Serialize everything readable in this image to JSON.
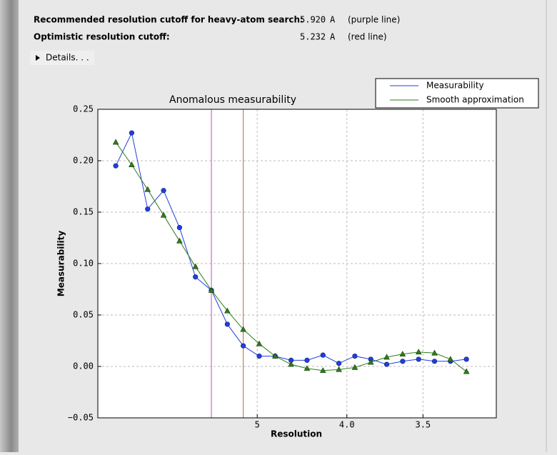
{
  "header": {
    "rows": [
      {
        "label": "Recommended resolution cutoff for heavy-atom search:",
        "value": "5.920",
        "unit": "A",
        "note": "(purple line)"
      },
      {
        "label": "Optimistic resolution cutoff:",
        "value": "5.232",
        "unit": "A",
        "note": "(red line)"
      }
    ],
    "details": "Details. . ."
  },
  "chart_data": {
    "type": "line",
    "title": "Anomalous measurability",
    "xlabel": "Resolution",
    "ylabel": "Measurability",
    "x": [
      0.0045,
      0.0085,
      0.0125,
      0.0165,
      0.0205,
      0.0245,
      0.0285,
      0.0325,
      0.0365,
      0.0405,
      0.0445,
      0.0485,
      0.0525,
      0.0565,
      0.0605,
      0.0645,
      0.0685,
      0.0725,
      0.0765,
      0.0805,
      0.0845,
      0.0885,
      0.0925
    ],
    "series": [
      {
        "name": "Measurability",
        "color": "#1f3fe0",
        "marker": "circle",
        "values": [
          0.195,
          0.227,
          0.153,
          0.171,
          0.135,
          0.087,
          0.074,
          0.041,
          0.02,
          0.01,
          0.01,
          0.006,
          0.006,
          0.011,
          0.003,
          0.01,
          0.007,
          0.002,
          0.005,
          0.007,
          0.005,
          0.005,
          0.007
        ]
      },
      {
        "name": "Smooth approximation",
        "color": "#2e7d1a",
        "marker": "triangle",
        "values": [
          0.218,
          0.196,
          0.172,
          0.147,
          0.122,
          0.097,
          0.074,
          0.054,
          0.036,
          0.022,
          0.01,
          0.002,
          -0.002,
          -0.004,
          -0.003,
          -0.001,
          0.004,
          0.009,
          0.012,
          0.014,
          0.013,
          0.007,
          -0.005
        ]
      }
    ],
    "vlines": [
      {
        "x": 0.0285,
        "color": "#cc44cc"
      },
      {
        "x": 0.0365,
        "color": "#c0662a"
      }
    ],
    "xlim": [
      0,
      0.1
    ],
    "ylim": [
      -0.05,
      0.25
    ],
    "xticks": [
      {
        "value": 0.04,
        "label": "5"
      },
      {
        "value": 0.0625,
        "label": "4.0"
      },
      {
        "value": 0.0816,
        "label": "3.5"
      }
    ],
    "yticks": [
      {
        "value": -0.05,
        "label": "−0.05"
      },
      {
        "value": 0,
        "label": "0.00"
      },
      0.05,
      {
        "value": 0.1,
        "label": "0.10"
      },
      0.15,
      {
        "value": 0.2,
        "label": "0.20"
      },
      0.25
    ],
    "grid": true
  }
}
